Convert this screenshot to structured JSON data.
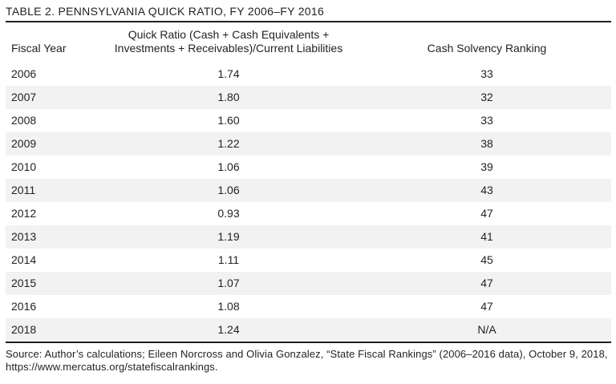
{
  "chart_data": {
    "type": "table",
    "title": "TABLE 2. PENNSYLVANIA QUICK RATIO, FY 2006–FY 2016",
    "columns": [
      "Fiscal Year",
      "Quick Ratio (Cash + Cash Equivalents + Investments + Receivables)/Current Liabilities",
      "Cash Solvency Ranking"
    ],
    "rows": [
      [
        "2006",
        "1.74",
        "33"
      ],
      [
        "2007",
        "1.80",
        "32"
      ],
      [
        "2008",
        "1.60",
        "33"
      ],
      [
        "2009",
        "1.22",
        "38"
      ],
      [
        "2010",
        "1.06",
        "39"
      ],
      [
        "2011",
        "1.06",
        "43"
      ],
      [
        "2012",
        "0.93",
        "47"
      ],
      [
        "2013",
        "1.19",
        "41"
      ],
      [
        "2014",
        "1.11",
        "45"
      ],
      [
        "2015",
        "1.07",
        "47"
      ],
      [
        "2016",
        "1.08",
        "47"
      ],
      [
        "2018",
        "1.24",
        "N/A"
      ]
    ],
    "source_note": "Source: Author’s calculations; Eileen Norcross and Olivia Gonzalez, “State Fiscal Rankings” (2006–2016 data), October 9, 2018, https://www.mercatus.org/statefiscalrankings.",
    "layout": {
      "striped": true,
      "stripe_color": "#f2f2f2",
      "rule_color": "#231f20",
      "text_color": "#231f20",
      "background_color": "#ffffff",
      "grid": false,
      "column_alignments": [
        "left",
        "center",
        "center"
      ]
    }
  }
}
